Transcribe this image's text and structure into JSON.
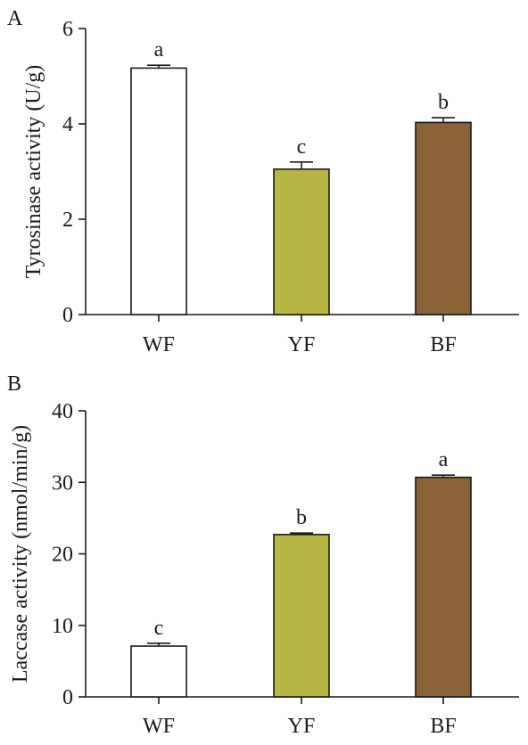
{
  "colors": {
    "WF": "#ffffff",
    "YF": "#b8b642",
    "BF": "#8b6336",
    "stroke": "#1a1a1a"
  },
  "chart_data": [
    {
      "panel": "A",
      "type": "bar",
      "categories": [
        "WF",
        "YF",
        "BF"
      ],
      "values": [
        5.17,
        3.05,
        4.03
      ],
      "errors": [
        0.06,
        0.15,
        0.1
      ],
      "significance": [
        "a",
        "c",
        "b"
      ],
      "ylabel": "Tyrosinase activity (U/g)",
      "ylim": [
        0,
        6
      ],
      "yticks": [
        0,
        2,
        4,
        6
      ],
      "grid": false,
      "legend": "none"
    },
    {
      "panel": "B",
      "type": "bar",
      "categories": [
        "WF",
        "YF",
        "BF"
      ],
      "values": [
        7.1,
        22.7,
        30.7
      ],
      "errors": [
        0.4,
        0.2,
        0.3
      ],
      "significance": [
        "c",
        "b",
        "a"
      ],
      "ylabel": "Laccase activity (nmol/min/g)",
      "ylim": [
        0,
        40
      ],
      "yticks": [
        0,
        10,
        20,
        30,
        40
      ],
      "grid": false,
      "legend": "none"
    }
  ]
}
